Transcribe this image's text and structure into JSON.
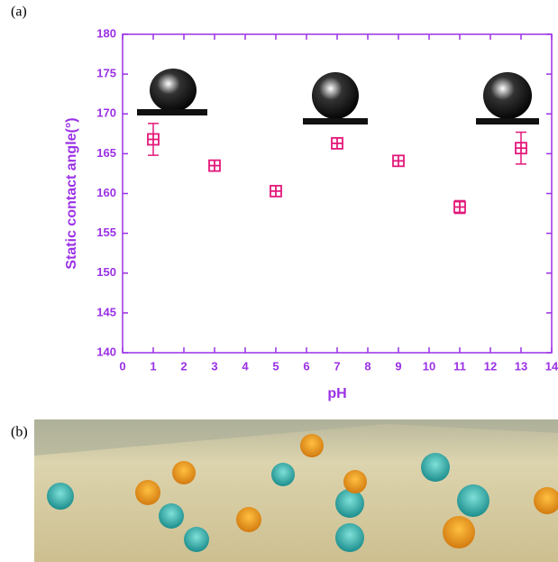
{
  "panel_labels": [
    "(a)",
    "(b)"
  ],
  "chart_data": {
    "type": "scatter",
    "x_label": "pH",
    "y_label": "Static contact angle(°)",
    "x": [
      1,
      3,
      5,
      7,
      9,
      11,
      13
    ],
    "values": [
      166.8,
      163.5,
      160.3,
      166.3,
      164.1,
      158.3,
      165.7
    ],
    "errors": [
      2.0,
      0.5,
      0.5,
      0.5,
      0.5,
      0.8,
      2.0
    ],
    "color": "#e3187a",
    "axis_color": "#9b30e6",
    "xlim": [
      0,
      14
    ],
    "xticks": [
      0,
      1,
      2,
      3,
      4,
      5,
      6,
      7,
      8,
      9,
      10,
      11,
      12,
      13,
      14
    ],
    "ylim": [
      140,
      180
    ],
    "yticks": [
      140,
      145,
      150,
      155,
      160,
      165,
      170,
      175,
      180
    ]
  }
}
